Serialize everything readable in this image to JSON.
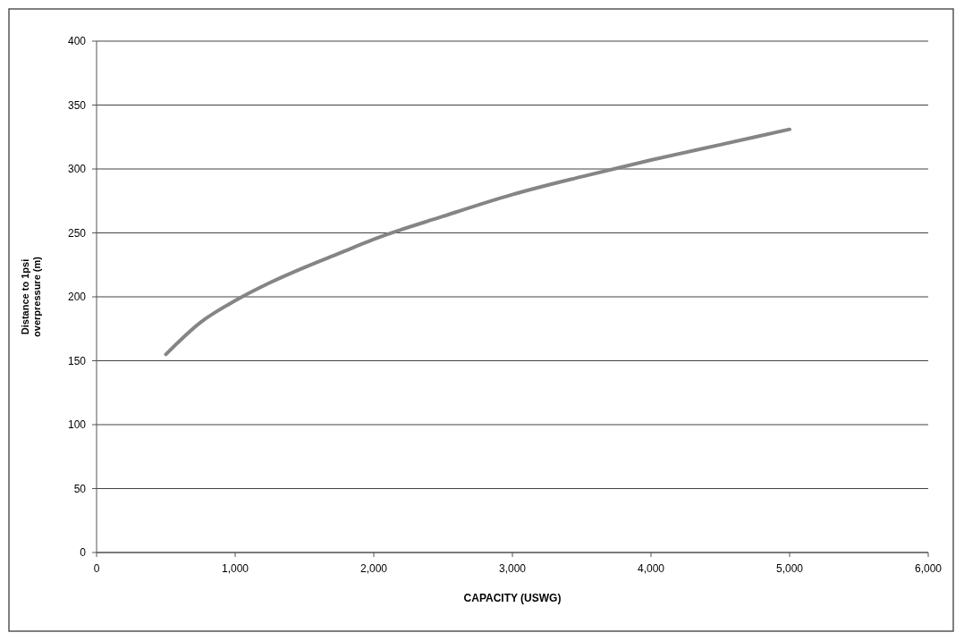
{
  "chart_data": {
    "type": "line",
    "xlabel": "CAPACITY (USWG)",
    "ylabel": "Distance to 1psi overpressure (m)",
    "x": [
      500,
      750,
      1000,
      1250,
      1500,
      1750,
      2000,
      2500,
      3000,
      3500,
      4000,
      4500,
      5000
    ],
    "series": [
      {
        "color": "#858585",
        "values": [
          155,
          180,
          197,
          211,
          223,
          234,
          245,
          263,
          280,
          294,
          307,
          319,
          331
        ]
      }
    ],
    "xlim": [
      0,
      6000
    ],
    "ylim": [
      0,
      400
    ],
    "xticks": [
      0,
      {
        "value": 1000,
        "label": "1,000"
      },
      {
        "value": 2000,
        "label": "2,000"
      },
      {
        "value": 3000,
        "label": "3,000"
      },
      {
        "value": 4000,
        "label": "4,000"
      },
      {
        "value": 5000,
        "label": "5,000"
      },
      {
        "value": 6000,
        "label": "6,000"
      }
    ],
    "yticks": [
      0,
      50,
      100,
      150,
      200,
      250,
      300,
      350,
      400
    ],
    "grid": "y",
    "line_style": "solid"
  }
}
